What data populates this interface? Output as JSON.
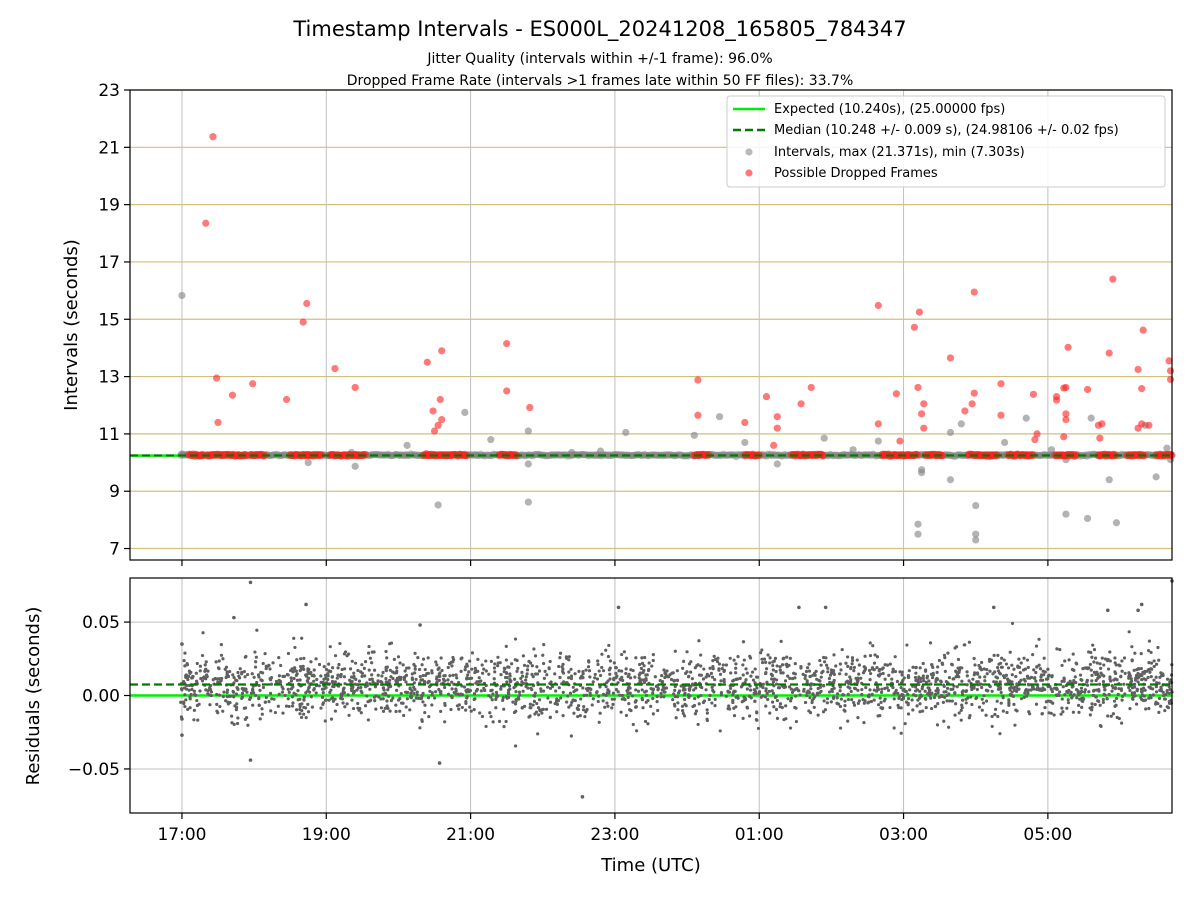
{
  "colors": {
    "expected": "#00ee00",
    "median": "#007a00",
    "intervals": "#808080",
    "dropped": "#ff2020",
    "residual_points": "#606060",
    "hgrid_top": "#d4bf7a",
    "grid": "#c0c0c0"
  },
  "chart_data": [
    {
      "type": "scatter",
      "panel": "intervals",
      "title": "Timestamp Intervals - ES000L_20241208_165805_784347",
      "subtitle_lines": [
        "Jitter Quality (intervals within +/-1 frame): 96.0%",
        "Dropped Frame Rate (intervals >1 frames late within 50 FF files): 33.7%"
      ],
      "xlabel": "",
      "ylabel": "Intervals (seconds)",
      "x_unit": "hours since 2024-12-08 00:00 UTC",
      "xlim": [
        16.28,
        30.72
      ],
      "ylim": [
        6.6,
        23.0
      ],
      "y_ticks": [
        7,
        9,
        11,
        13,
        15,
        17,
        19,
        21,
        23
      ],
      "grid": true,
      "legend_position": "top-right",
      "legend": [
        "Expected (10.240s), (25.00000 fps)",
        "Median (10.248 +/- 0.009 s), (24.98106 +/- 0.02 fps)",
        "Intervals, max (21.371s), min (7.303s)",
        "Possible Dropped Frames"
      ],
      "expected_value": 10.24,
      "median_value": 10.248,
      "baseline_value": 10.26,
      "baseline_x_start": 16.98,
      "dropped_clusters": [
        [
          17.1,
          17.3
        ],
        [
          17.35,
          17.9
        ],
        [
          17.95,
          18.15
        ],
        [
          18.5,
          18.95
        ],
        [
          19.05,
          19.55
        ],
        [
          20.35,
          20.95
        ],
        [
          21.4,
          21.65
        ],
        [
          24.1,
          24.3
        ],
        [
          24.8,
          25.0
        ],
        [
          25.45,
          25.9
        ],
        [
          26.7,
          27.2
        ],
        [
          27.3,
          27.55
        ],
        [
          27.9,
          28.3
        ],
        [
          28.45,
          28.8
        ],
        [
          29.1,
          29.4
        ],
        [
          29.7,
          29.95
        ],
        [
          30.1,
          30.35
        ],
        [
          30.5,
          30.72
        ]
      ],
      "intervals_outliers": [
        {
          "x": 17.0,
          "y": 15.83
        },
        {
          "x": 17.0,
          "y": 10.3
        },
        {
          "x": 19.4,
          "y": 9.87
        },
        {
          "x": 19.35,
          "y": 10.35
        },
        {
          "x": 18.75,
          "y": 10.0
        },
        {
          "x": 20.12,
          "y": 10.6
        },
        {
          "x": 20.55,
          "y": 8.52
        },
        {
          "x": 20.92,
          "y": 11.75
        },
        {
          "x": 21.28,
          "y": 10.8
        },
        {
          "x": 21.8,
          "y": 11.1
        },
        {
          "x": 21.8,
          "y": 9.95
        },
        {
          "x": 21.8,
          "y": 8.62
        },
        {
          "x": 22.4,
          "y": 10.35
        },
        {
          "x": 22.8,
          "y": 10.4
        },
        {
          "x": 23.15,
          "y": 11.05
        },
        {
          "x": 24.1,
          "y": 10.95
        },
        {
          "x": 24.45,
          "y": 11.6
        },
        {
          "x": 24.8,
          "y": 10.7
        },
        {
          "x": 25.25,
          "y": 9.95
        },
        {
          "x": 25.9,
          "y": 10.85
        },
        {
          "x": 26.3,
          "y": 10.45
        },
        {
          "x": 26.65,
          "y": 10.75
        },
        {
          "x": 27.25,
          "y": 9.75
        },
        {
          "x": 27.25,
          "y": 9.65
        },
        {
          "x": 27.2,
          "y": 7.85
        },
        {
          "x": 27.2,
          "y": 7.5
        },
        {
          "x": 27.65,
          "y": 9.4
        },
        {
          "x": 27.65,
          "y": 11.05
        },
        {
          "x": 27.8,
          "y": 11.35
        },
        {
          "x": 28.0,
          "y": 8.5
        },
        {
          "x": 28.0,
          "y": 7.5
        },
        {
          "x": 28.0,
          "y": 7.3
        },
        {
          "x": 28.4,
          "y": 10.7
        },
        {
          "x": 28.7,
          "y": 11.55
        },
        {
          "x": 29.25,
          "y": 8.2
        },
        {
          "x": 29.25,
          "y": 10.1
        },
        {
          "x": 29.05,
          "y": 10.45
        },
        {
          "x": 29.55,
          "y": 8.05
        },
        {
          "x": 29.6,
          "y": 11.55
        },
        {
          "x": 29.85,
          "y": 9.4
        },
        {
          "x": 29.95,
          "y": 7.9
        },
        {
          "x": 30.35,
          "y": 11.3
        },
        {
          "x": 30.5,
          "y": 9.5
        },
        {
          "x": 30.65,
          "y": 10.5
        },
        {
          "x": 30.7,
          "y": 10.1
        }
      ],
      "dropped_outliers": [
        {
          "x": 17.43,
          "y": 21.37
        },
        {
          "x": 17.33,
          "y": 18.35
        },
        {
          "x": 17.48,
          "y": 12.95
        },
        {
          "x": 17.5,
          "y": 11.4
        },
        {
          "x": 17.7,
          "y": 12.35
        },
        {
          "x": 17.98,
          "y": 12.75
        },
        {
          "x": 18.45,
          "y": 12.2
        },
        {
          "x": 18.68,
          "y": 14.9
        },
        {
          "x": 18.73,
          "y": 15.55
        },
        {
          "x": 19.12,
          "y": 13.28
        },
        {
          "x": 19.4,
          "y": 12.62
        },
        {
          "x": 20.4,
          "y": 13.5
        },
        {
          "x": 20.6,
          "y": 13.9
        },
        {
          "x": 20.58,
          "y": 12.2
        },
        {
          "x": 20.6,
          "y": 11.5
        },
        {
          "x": 20.48,
          "y": 11.8
        },
        {
          "x": 20.5,
          "y": 11.1
        },
        {
          "x": 20.55,
          "y": 11.3
        },
        {
          "x": 21.5,
          "y": 14.15
        },
        {
          "x": 21.5,
          "y": 12.5
        },
        {
          "x": 21.82,
          "y": 11.92
        },
        {
          "x": 24.15,
          "y": 12.88
        },
        {
          "x": 24.15,
          "y": 11.65
        },
        {
          "x": 24.8,
          "y": 11.4
        },
        {
          "x": 25.1,
          "y": 12.3
        },
        {
          "x": 25.25,
          "y": 11.6
        },
        {
          "x": 25.25,
          "y": 11.2
        },
        {
          "x": 25.2,
          "y": 10.6
        },
        {
          "x": 25.58,
          "y": 12.05
        },
        {
          "x": 25.72,
          "y": 12.62
        },
        {
          "x": 26.65,
          "y": 15.48
        },
        {
          "x": 26.65,
          "y": 11.35
        },
        {
          "x": 26.9,
          "y": 12.4
        },
        {
          "x": 26.95,
          "y": 10.75
        },
        {
          "x": 27.15,
          "y": 14.72
        },
        {
          "x": 27.22,
          "y": 15.25
        },
        {
          "x": 27.2,
          "y": 12.62
        },
        {
          "x": 27.28,
          "y": 12.05
        },
        {
          "x": 27.25,
          "y": 11.7
        },
        {
          "x": 27.28,
          "y": 11.2
        },
        {
          "x": 27.65,
          "y": 13.65
        },
        {
          "x": 27.85,
          "y": 11.8
        },
        {
          "x": 27.98,
          "y": 15.95
        },
        {
          "x": 27.98,
          "y": 12.42
        },
        {
          "x": 27.95,
          "y": 12.05
        },
        {
          "x": 28.35,
          "y": 12.75
        },
        {
          "x": 28.35,
          "y": 11.65
        },
        {
          "x": 28.8,
          "y": 12.38
        },
        {
          "x": 28.85,
          "y": 11.0
        },
        {
          "x": 28.82,
          "y": 10.8
        },
        {
          "x": 29.12,
          "y": 12.18
        },
        {
          "x": 29.12,
          "y": 12.3
        },
        {
          "x": 29.25,
          "y": 12.62
        },
        {
          "x": 29.22,
          "y": 12.6
        },
        {
          "x": 29.25,
          "y": 11.7
        },
        {
          "x": 29.25,
          "y": 11.5
        },
        {
          "x": 29.28,
          "y": 14.02
        },
        {
          "x": 29.22,
          "y": 10.9
        },
        {
          "x": 29.55,
          "y": 12.55
        },
        {
          "x": 29.7,
          "y": 11.3
        },
        {
          "x": 29.75,
          "y": 11.35
        },
        {
          "x": 29.72,
          "y": 10.85
        },
        {
          "x": 29.9,
          "y": 16.4
        },
        {
          "x": 29.85,
          "y": 13.82
        },
        {
          "x": 30.25,
          "y": 13.25
        },
        {
          "x": 30.25,
          "y": 11.2
        },
        {
          "x": 30.3,
          "y": 11.35
        },
        {
          "x": 30.3,
          "y": 12.58
        },
        {
          "x": 30.32,
          "y": 14.62
        },
        {
          "x": 30.4,
          "y": 11.3
        },
        {
          "x": 30.68,
          "y": 13.55
        },
        {
          "x": 30.7,
          "y": 13.2
        },
        {
          "x": 30.7,
          "y": 12.9
        }
      ]
    },
    {
      "type": "scatter",
      "panel": "residuals",
      "xlabel": "Time (UTC)",
      "ylabel": "Residuals (seconds)",
      "x_unit": "hours since 2024-12-08 00:00 UTC",
      "xlim": [
        16.28,
        30.72
      ],
      "ylim": [
        -0.08,
        0.08
      ],
      "y_ticks": [
        -0.05,
        0.0,
        0.05
      ],
      "y_tick_labels": [
        "−0.05",
        "0.00",
        "0.05"
      ],
      "x_ticks": [
        17,
        19,
        21,
        23,
        25,
        27,
        29
      ],
      "x_tick_labels": [
        "17:00",
        "19:00",
        "21:00",
        "23:00",
        "01:00",
        "03:00",
        "05:00"
      ],
      "grid": true,
      "expected_value": 0.0,
      "median_value": 0.0075,
      "cloud": {
        "x_start": 16.98,
        "x_end": 30.72,
        "center": 0.007,
        "spread": 0.011,
        "count": 2600
      },
      "outliers": [
        {
          "x": 17.95,
          "y": 0.077
        },
        {
          "x": 18.72,
          "y": 0.062
        },
        {
          "x": 17.72,
          "y": 0.053
        },
        {
          "x": 17.95,
          "y": -0.044
        },
        {
          "x": 20.57,
          "y": -0.046
        },
        {
          "x": 20.3,
          "y": 0.048
        },
        {
          "x": 22.55,
          "y": -0.069
        },
        {
          "x": 23.05,
          "y": 0.06
        },
        {
          "x": 25.55,
          "y": 0.06
        },
        {
          "x": 25.92,
          "y": 0.06
        },
        {
          "x": 28.25,
          "y": 0.06
        },
        {
          "x": 30.25,
          "y": 0.058
        },
        {
          "x": 30.3,
          "y": 0.062
        },
        {
          "x": 29.83,
          "y": 0.058
        },
        {
          "x": 30.72,
          "y": 0.078
        },
        {
          "x": 17.0,
          "y": 0.035
        },
        {
          "x": 17.0,
          "y": -0.016
        },
        {
          "x": 17.0,
          "y": -0.027
        }
      ]
    }
  ]
}
